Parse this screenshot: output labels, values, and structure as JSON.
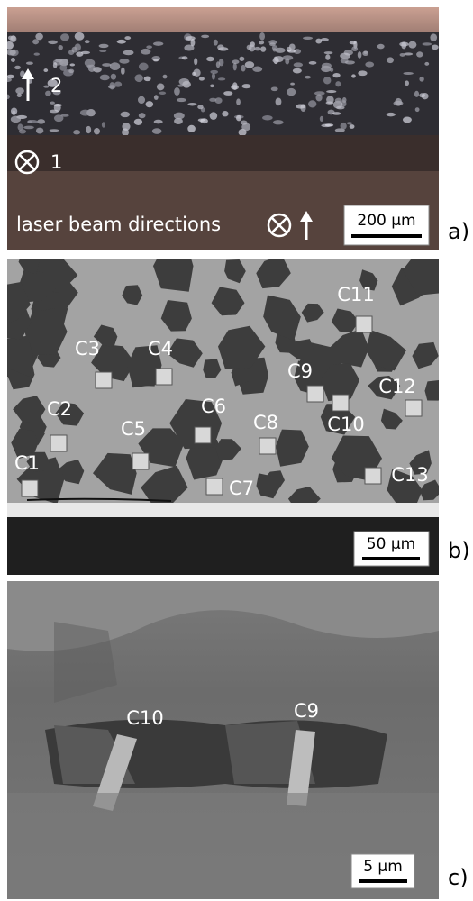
{
  "panels": [
    {
      "label": "a)",
      "annotations": [
        "2",
        "1"
      ],
      "caption": "laser beam directions",
      "scale_bar": "200 µm"
    },
    {
      "label": "b)",
      "markers": [
        "C1",
        "C2",
        "C3",
        "C4",
        "C5",
        "C6",
        "C7",
        "C8",
        "C9",
        "C10",
        "C11",
        "C12",
        "C13"
      ],
      "scale_bar": "50 µm"
    },
    {
      "label": "c)",
      "markers": [
        "C10",
        "C9"
      ],
      "scale_bar": "5 µm"
    }
  ]
}
